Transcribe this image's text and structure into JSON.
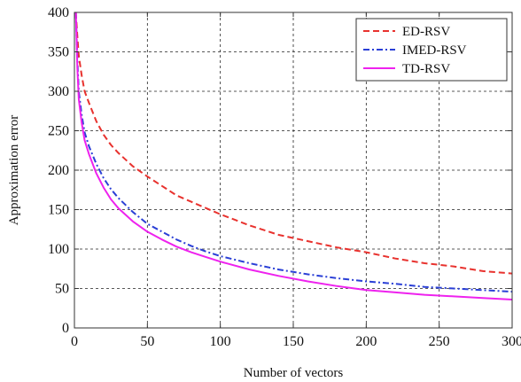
{
  "chart_data": {
    "type": "line",
    "title": "",
    "xlabel": "Number of vectors",
    "ylabel": "Approximation error",
    "xlim": [
      0,
      300
    ],
    "ylim": [
      0,
      400
    ],
    "xticks": [
      0,
      50,
      100,
      150,
      200,
      250,
      300
    ],
    "yticks": [
      0,
      50,
      100,
      150,
      200,
      250,
      300,
      350,
      400
    ],
    "xtick_labels": [
      "0",
      "50",
      "100",
      "150",
      "200",
      "250",
      "300"
    ],
    "ytick_labels": [
      "0",
      "50",
      "100",
      "150",
      "200",
      "250",
      "300",
      "350",
      "400"
    ],
    "grid": true,
    "legend_position": "top-right",
    "series": [
      {
        "name": "ED-RSV",
        "color": "#e8322e",
        "line_style": "dashed",
        "x": [
          1,
          2,
          3,
          5,
          7,
          10,
          15,
          20,
          25,
          30,
          40,
          50,
          60,
          70,
          80,
          90,
          100,
          120,
          140,
          160,
          180,
          200,
          220,
          240,
          260,
          280,
          300
        ],
        "values": [
          400,
          370,
          345,
          320,
          300,
          285,
          262,
          245,
          232,
          222,
          205,
          192,
          180,
          168,
          160,
          152,
          144,
          130,
          118,
          110,
          102,
          96,
          88,
          82,
          78,
          72,
          69
        ]
      },
      {
        "name": "IMED-RSV",
        "color": "#2a3fd6",
        "line_style": "dash-dot",
        "x": [
          1,
          2,
          3,
          5,
          7,
          10,
          15,
          20,
          25,
          30,
          40,
          50,
          60,
          70,
          80,
          90,
          100,
          120,
          140,
          160,
          180,
          200,
          220,
          240,
          260,
          280,
          300
        ],
        "values": [
          400,
          340,
          300,
          270,
          248,
          230,
          208,
          190,
          176,
          165,
          147,
          132,
          122,
          112,
          104,
          97,
          91,
          82,
          74,
          68,
          63,
          59,
          56,
          52,
          50,
          48,
          46
        ]
      },
      {
        "name": "TD-RSV",
        "color": "#ee22ee",
        "line_style": "solid",
        "x": [
          1,
          2,
          3,
          5,
          7,
          10,
          15,
          20,
          25,
          30,
          40,
          50,
          60,
          70,
          80,
          90,
          100,
          120,
          140,
          160,
          180,
          200,
          220,
          240,
          260,
          280,
          300
        ],
        "values": [
          400,
          330,
          290,
          260,
          238,
          220,
          196,
          178,
          163,
          152,
          135,
          122,
          112,
          103,
          96,
          90,
          84,
          74,
          66,
          59,
          53,
          48,
          45,
          42,
          40,
          38,
          36
        ]
      }
    ]
  }
}
